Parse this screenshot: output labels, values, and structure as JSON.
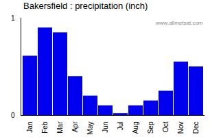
{
  "chart_data": {
    "type": "bar",
    "title": "Bakersfield : precipitation (inch)",
    "categories": [
      "Jan",
      "Feb",
      "Mar",
      "Apr",
      "May",
      "Jun",
      "Jul",
      "Aug",
      "Sep",
      "Oct",
      "Nov",
      "Dec"
    ],
    "values": [
      0.61,
      0.9,
      0.85,
      0.4,
      0.2,
      0.1,
      0.02,
      0.1,
      0.15,
      0.25,
      0.55,
      0.5
    ],
    "color": "#0000ee",
    "ylim": [
      0,
      1.0
    ],
    "yticks": [
      0,
      1
    ],
    "grid": false,
    "annotations": [
      "www.allmetsat.com"
    ]
  }
}
